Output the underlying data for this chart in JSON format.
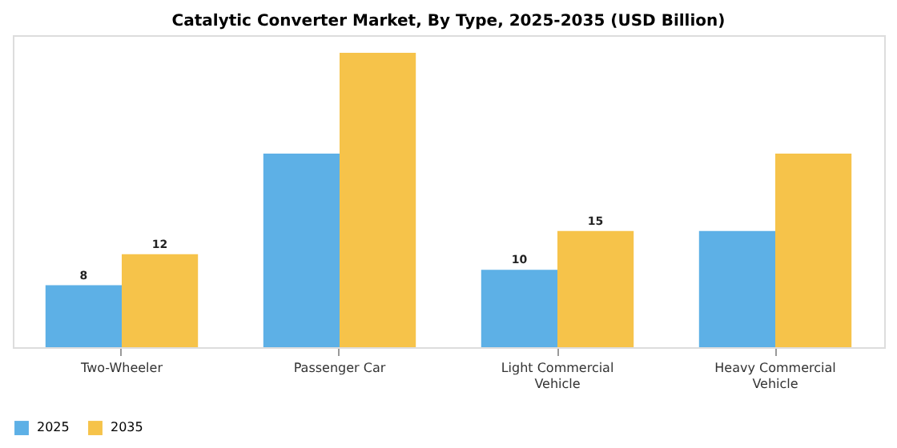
{
  "chart_data": {
    "type": "bar",
    "title": "Catalytic Converter Market, By Type, 2025-2035 (USD Billion)",
    "categories": [
      "Two-Wheeler",
      "Passenger Car",
      "Light Commercial Vehicle",
      "Heavy Commercial Vehicle"
    ],
    "series": [
      {
        "name": "2025",
        "color": "#5db0e6",
        "values": [
          8,
          25,
          10,
          15
        ],
        "value_labels": [
          "8",
          null,
          "10",
          null
        ]
      },
      {
        "name": "2035",
        "color": "#f6c34a",
        "values": [
          12,
          38,
          15,
          25
        ],
        "value_labels": [
          "12",
          null,
          "15",
          null
        ]
      }
    ],
    "legend": "bottom",
    "grid": false,
    "tick_labels": "x"
  }
}
